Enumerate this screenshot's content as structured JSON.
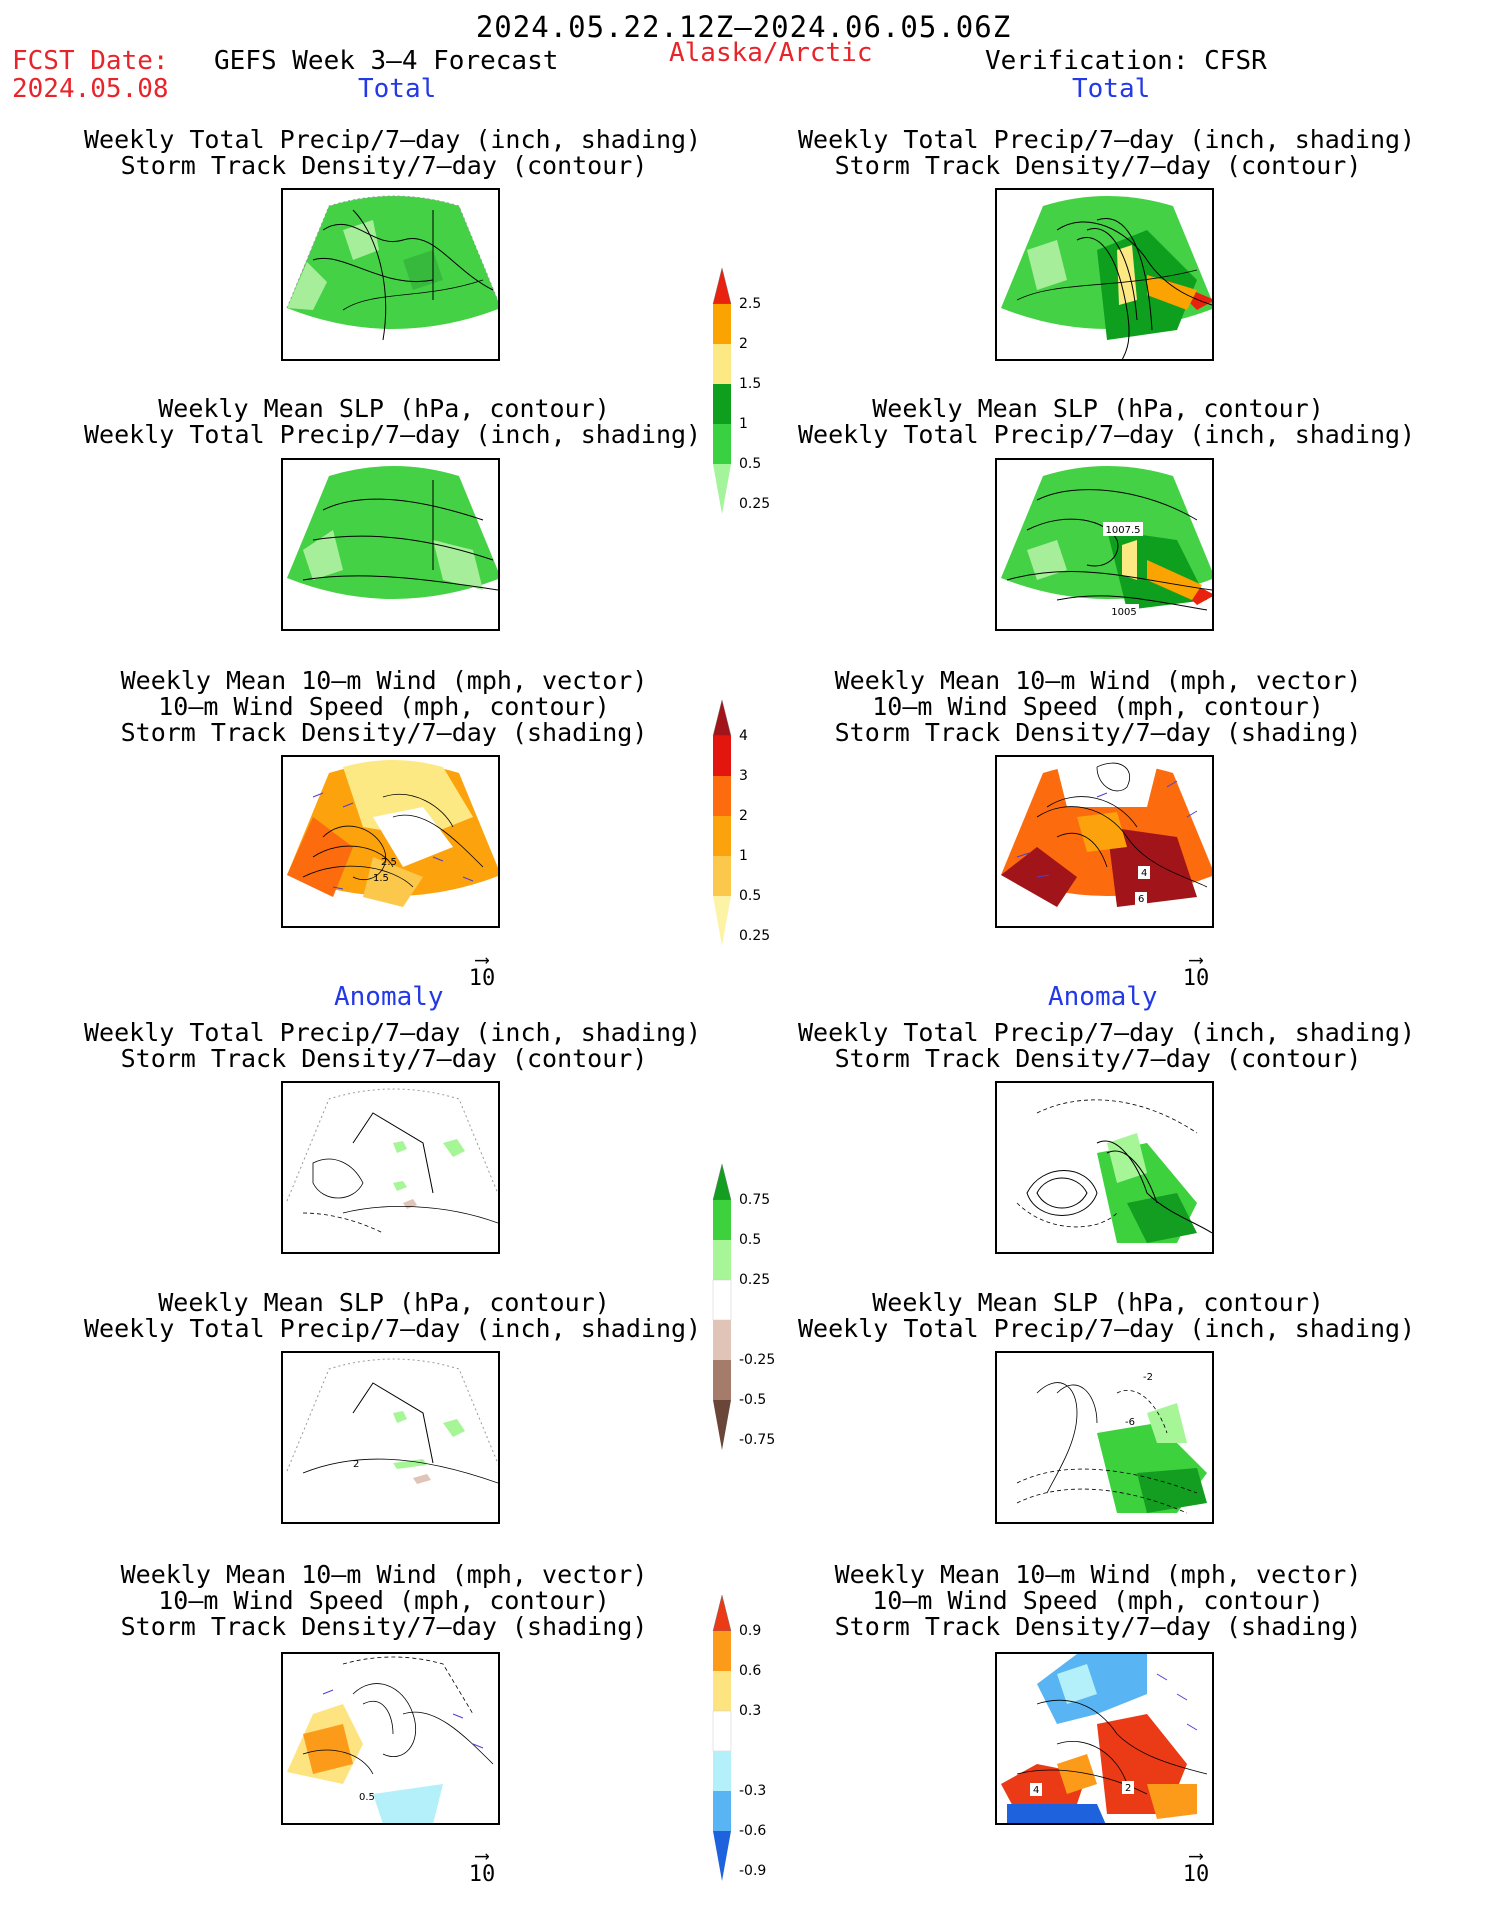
{
  "header": {
    "date_range": "2024.05.22.12Z–2024.06.05.06Z",
    "fcst_label": "FCST Date:",
    "fcst_date": "2024.05.08",
    "forecast_name": "GEFS Week 3–4 Forecast",
    "region": "Alaska/Arctic",
    "verification": "Verification: CFSR"
  },
  "sections": {
    "total": "Total",
    "anomaly": "Anomaly"
  },
  "titles": {
    "precip_track": [
      "Weekly Total Precip/7–day (inch, shading)",
      "Storm Track Density/7–day (contour)"
    ],
    "slp_precip": [
      "Weekly Mean SLP (hPa, contour)",
      "Weekly Total Precip/7–day (inch, shading)"
    ],
    "wind": [
      "Weekly Mean 10–m Wind (mph, vector)",
      "10–m Wind Speed (mph, contour)",
      "Storm Track Density/7–day (shading)"
    ]
  },
  "vector_ref": "10",
  "panel_labels": {
    "slp_obs_high": "1007.5",
    "slp_obs_low": "1005",
    "wind_fcst_a": "2.5",
    "wind_fcst_b": "1.5",
    "wind_obs_a": "4",
    "wind_obs_b": "6",
    "slp_anom_fcst": "2",
    "slp_anom_obs_a": "-2",
    "slp_anom_obs_b": "-6",
    "wind_anom_fcst": "0.5",
    "wind_anom_obs_a": "4",
    "wind_anom_obs_b": "2"
  },
  "colorbars": {
    "precip_total": {
      "labels": [
        "2.5",
        "2",
        "1.5",
        "1",
        "0.5",
        "0.25"
      ],
      "colors": [
        "#e8220f",
        "#fba300",
        "#fde983",
        "#0f9f1e",
        "#39d042",
        "#a3f49a"
      ]
    },
    "track_total": {
      "labels": [
        "4",
        "3",
        "2",
        "1",
        "0.5",
        "0.25"
      ],
      "colors": [
        "#a0141a",
        "#e3150f",
        "#fc6b0e",
        "#fca20c",
        "#fcc84c",
        "#fdf3a7"
      ]
    },
    "precip_anom": {
      "labels": [
        "0.75",
        "0.5",
        "0.25",
        "-0.25",
        "-0.5",
        "-0.75"
      ],
      "colors": [
        "#139e21",
        "#3dd13e",
        "#a6f597",
        "#ffffff",
        "#e0c4b8",
        "#a57c6c",
        "#6a4638"
      ]
    },
    "track_anom": {
      "labels": [
        "0.9",
        "0.6",
        "0.3",
        "-0.3",
        "-0.6",
        "-0.9"
      ],
      "colors": [
        "#ea3a16",
        "#fc9a1a",
        "#fde480",
        "#ffffff",
        "#b3f0fa",
        "#58b4f2",
        "#1e63dd"
      ]
    }
  }
}
